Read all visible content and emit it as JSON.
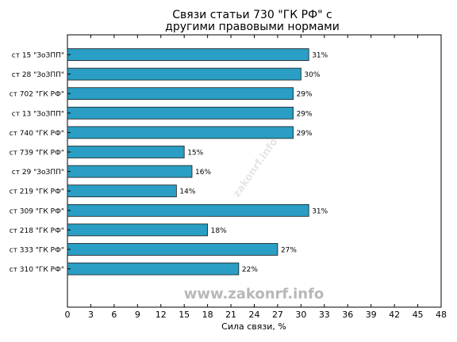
{
  "chart_data": {
    "type": "bar",
    "orientation": "horizontal",
    "title_lines": [
      "Связи статьи 730 \"ГК РФ\" с",
      "другими правовыми нормами"
    ],
    "xlabel": "Сила связи, %",
    "ylabel": "",
    "categories": [
      "ст 15 \"ЗоЗПП\"",
      "ст 28 \"ЗоЗПП\"",
      "ст 702 \"ГК РФ\"",
      "ст 13 \"ЗоЗПП\"",
      "ст 740 \"ГК РФ\"",
      "ст 739 \"ГК РФ\"",
      "ст 29 \"ЗоЗПП\"",
      "ст 219 \"ГК РФ\"",
      "ст 309 \"ГК РФ\"",
      "ст 218 \"ГК РФ\"",
      "ст 333 \"ГК РФ\"",
      "ст 310 \"ГК РФ\""
    ],
    "values": [
      31,
      30,
      29,
      29,
      29,
      15,
      16,
      14,
      31,
      18,
      27,
      22
    ],
    "value_labels": [
      "31%",
      "30%",
      "29%",
      "29%",
      "29%",
      "15%",
      "16%",
      "14%",
      "31%",
      "18%",
      "27%",
      "22%"
    ],
    "xlim": [
      0,
      48
    ],
    "xticks": [
      0,
      3,
      6,
      9,
      12,
      15,
      18,
      21,
      24,
      27,
      30,
      33,
      36,
      39,
      42,
      45,
      48
    ],
    "grid": false,
    "legend": "none",
    "bar_color": "#2a9ec4",
    "bar_edge_color": "#1a1a1a",
    "watermark": "www.zakonrf.info",
    "watermark_diagonal": "zakonrf.info"
  }
}
